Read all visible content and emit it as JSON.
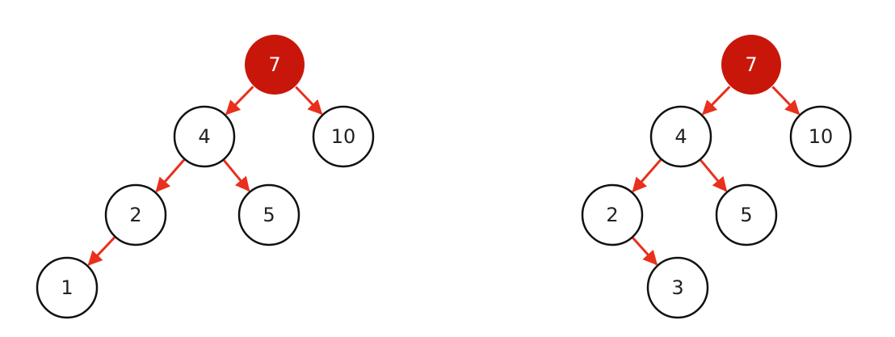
{
  "colors": {
    "edge": "#e8301c",
    "node_stroke": "#111111",
    "node_fill": "#ffffff",
    "root_fill": "#c8170a",
    "root_text": "#ffffff",
    "text": "#222222"
  },
  "trees": [
    {
      "nodes": [
        {
          "id": "n7",
          "label": "7",
          "root": true
        },
        {
          "id": "n4",
          "label": "4"
        },
        {
          "id": "n10",
          "label": "10"
        },
        {
          "id": "n2",
          "label": "2"
        },
        {
          "id": "n5",
          "label": "5"
        },
        {
          "id": "n1",
          "label": "1"
        }
      ],
      "edges": [
        {
          "from": "n7",
          "to": "n4"
        },
        {
          "from": "n7",
          "to": "n10"
        },
        {
          "from": "n4",
          "to": "n2"
        },
        {
          "from": "n4",
          "to": "n5"
        },
        {
          "from": "n2",
          "to": "n1"
        }
      ]
    },
    {
      "nodes": [
        {
          "id": "m7",
          "label": "7",
          "root": true
        },
        {
          "id": "m4",
          "label": "4"
        },
        {
          "id": "m10",
          "label": "10"
        },
        {
          "id": "m2",
          "label": "2"
        },
        {
          "id": "m5",
          "label": "5"
        },
        {
          "id": "m3",
          "label": "3"
        }
      ],
      "edges": [
        {
          "from": "m7",
          "to": "m4"
        },
        {
          "from": "m7",
          "to": "m10"
        },
        {
          "from": "m4",
          "to": "m2"
        },
        {
          "from": "m4",
          "to": "m5"
        },
        {
          "from": "m2",
          "to": "m3"
        }
      ]
    }
  ]
}
